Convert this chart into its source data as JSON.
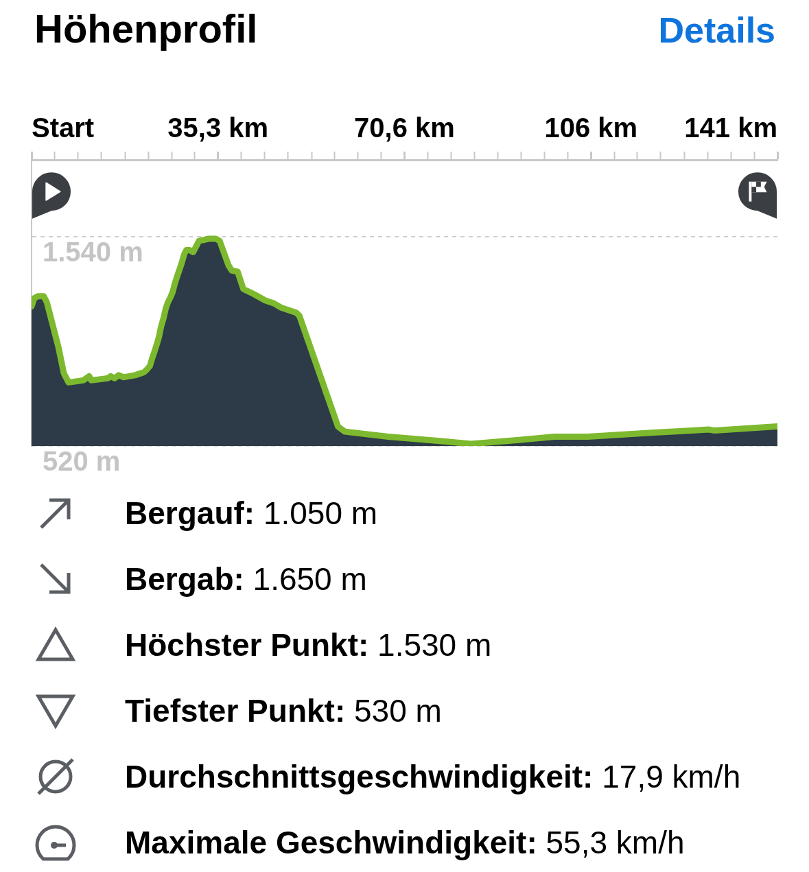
{
  "chart_data": {
    "type": "area",
    "title": "Höhenprofil",
    "annotations": [
      "Details",
      "Bergauf: 1.050 m",
      "Bergab: 1.650 m",
      "Höchster Punkt: 1.530 m",
      "Tiefster Punkt: 530 m",
      "Durchschnittsgeschwindigkeit: 17,9 km/h",
      "Maximale Geschwindigkeit: 55,3 km/h"
    ],
    "x": [
      0,
      0.5,
      1.2,
      2.3,
      2.9,
      4.0,
      5.1,
      6.1,
      7.0,
      9.8,
      10.9,
      11.3,
      14.4,
      15.0,
      15.7,
      16.5,
      17.4,
      19.6,
      21.3,
      21.9,
      22.4,
      22.8,
      23.2,
      23.7,
      24.1,
      24.3,
      24.5,
      25.0,
      25.4,
      25.8,
      26.3,
      26.7,
      26.9,
      27.1,
      27.6,
      28.0,
      28.2,
      28.4,
      28.9,
      29.3,
      29.9,
      30.6,
      31.7,
      32.7,
      33.4,
      34.9,
      35.6,
      37.3,
      37.9,
      39.0,
      40.1,
      42.1,
      44.2,
      45.9,
      47.2,
      50.1,
      50.7,
      58.0,
      59.3,
      67.5,
      76.9,
      83.2,
      92.7,
      99.0,
      105.3,
      111.6,
      117.9,
      128.3,
      129.3,
      141.2
    ],
    "values": [
      1200,
      1240,
      1250,
      1250,
      1220,
      1110,
      1000,
      875,
      830,
      840,
      860,
      840,
      850,
      860,
      850,
      865,
      855,
      865,
      880,
      895,
      910,
      945,
      975,
      1015,
      1050,
      1075,
      1100,
      1145,
      1190,
      1220,
      1245,
      1270,
      1290,
      1310,
      1350,
      1380,
      1395,
      1410,
      1455,
      1475,
      1475,
      1465,
      1520,
      1525,
      1530,
      1530,
      1520,
      1400,
      1375,
      1370,
      1285,
      1260,
      1230,
      1215,
      1195,
      1170,
      1155,
      615,
      590,
      565,
      545,
      530,
      550,
      565,
      565,
      575,
      585,
      600,
      595,
      615
    ],
    "color": "#2d3a47",
    "colors": [
      "#7db92e",
      "#7db92e",
      "#7db92e",
      "#7db92e",
      "#7db92e",
      "#7db92e",
      "#7db92e",
      "#7db92e",
      "#7db92e",
      "#7db92e",
      "#7db92e",
      "#7db92e",
      "#7db92e",
      "#7db92e",
      "#7db92e",
      "#7db92e",
      "#7db92e",
      "#7db92e",
      "#7db92e",
      "#7db92e",
      "#7db92e",
      "#7db92e",
      "#7db92e",
      "#7db92e",
      "#7db92e",
      "#7db92e",
      "#7db92e",
      "#7db92e",
      "#7db92e",
      "#7db92e",
      "#7db92e",
      "#7db92e",
      "#7db92e",
      "#7db92e",
      "#7db92e",
      "#7db92e",
      "#7db92e",
      "#7db92e",
      "#7db92e",
      "#7db92e",
      "#7db92e",
      "#7db92e",
      "#7db92e",
      "#7db92e",
      "#7db92e",
      "#7db92e",
      "#7db92e",
      "#7db92e",
      "#7db92e",
      "#7db92e",
      "#7db92e",
      "#7db92e",
      "#7db92e",
      "#7db92e",
      "#7db92e",
      "#7db92e",
      "#7db92e",
      "#7db92e",
      "#7db92e",
      "#7db92e",
      "#7db92e",
      "#7db92e",
      "#7db92e",
      "#7db92e",
      "#7db92e",
      "#7db92e",
      "#7db92e",
      "#7db92e",
      "#7db92e",
      "#7db92e"
    ],
    "xlim": [
      0,
      141.2
    ],
    "xticks": [
      {
        "value": 0,
        "label": "Start"
      },
      {
        "value": 4.4,
        "label": null
      },
      {
        "value": 8.8,
        "label": null
      },
      {
        "value": 13.2,
        "label": null
      },
      {
        "value": 17.7,
        "label": null
      },
      {
        "value": 22.1,
        "label": null
      },
      {
        "value": 26.5,
        "label": null
      },
      {
        "value": 30.9,
        "label": null
      },
      {
        "value": 35.3,
        "label": "35,3 km"
      },
      {
        "value": 39.7,
        "label": null
      },
      {
        "value": 44.1,
        "label": null
      },
      {
        "value": 48.5,
        "label": null
      },
      {
        "value": 53.0,
        "label": null
      },
      {
        "value": 57.4,
        "label": null
      },
      {
        "value": 61.8,
        "label": null
      },
      {
        "value": 66.2,
        "label": null
      },
      {
        "value": 70.6,
        "label": "70,6 km"
      },
      {
        "value": 75.0,
        "label": null
      },
      {
        "value": 79.4,
        "label": null
      },
      {
        "value": 83.8,
        "label": null
      },
      {
        "value": 88.3,
        "label": null
      },
      {
        "value": 92.7,
        "label": null
      },
      {
        "value": 97.1,
        "label": null
      },
      {
        "value": 101.5,
        "label": null
      },
      {
        "value": 105.9,
        "label": "106 km"
      },
      {
        "value": 110.3,
        "label": null
      },
      {
        "value": 114.7,
        "label": null
      },
      {
        "value": 119.1,
        "label": null
      },
      {
        "value": 123.6,
        "label": null
      },
      {
        "value": 128.0,
        "label": null
      },
      {
        "value": 132.4,
        "label": null
      },
      {
        "value": 136.8,
        "label": null
      },
      {
        "value": 141.2,
        "label": "141 km"
      }
    ],
    "ylim": [
      520,
      1915
    ],
    "yticks": [
      {
        "value": 520,
        "label": "520 m"
      },
      {
        "value": 1540,
        "label": "1.540 m"
      }
    ],
    "grid": "y"
  }
}
